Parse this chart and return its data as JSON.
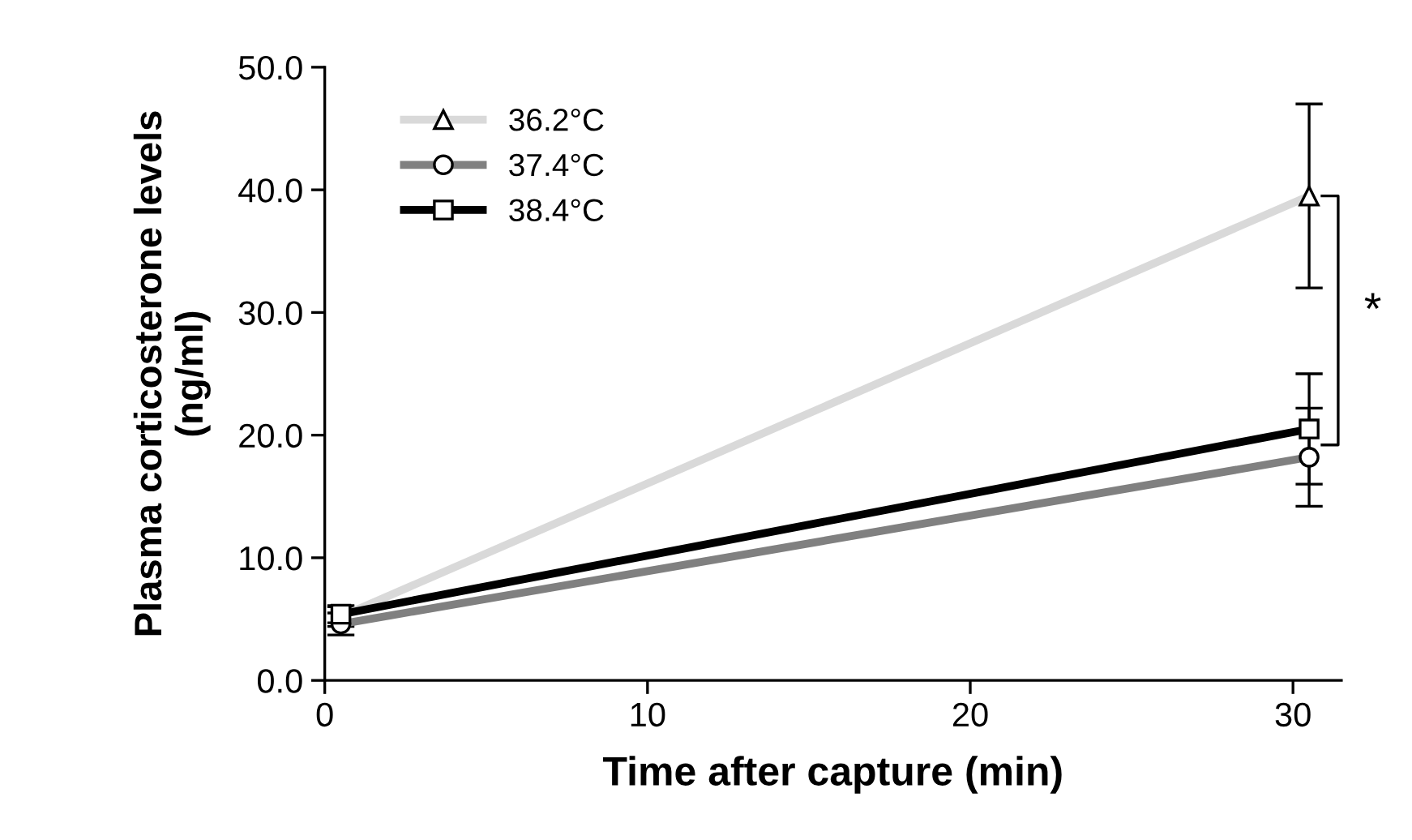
{
  "chart_data": {
    "type": "line",
    "xlabel": "Time after capture (min)",
    "ylabel": "Plasma corticosterone levels\n(ng/ml)",
    "x": [
      0.5,
      30.5
    ],
    "xlim": [
      0,
      31.5
    ],
    "xticks": [
      0,
      10,
      20,
      30
    ],
    "ylim": [
      0,
      50
    ],
    "yticks": [
      {
        "value": 0,
        "label": "0.0"
      },
      {
        "value": 10,
        "label": "10.0"
      },
      {
        "value": 20,
        "label": "20.0"
      },
      {
        "value": 30,
        "label": "30.0"
      },
      {
        "value": 40,
        "label": "40.0"
      },
      {
        "value": 50,
        "label": "50.0"
      }
    ],
    "series": [
      {
        "name": "36.2°C",
        "color": "#d9d9d9",
        "marker": "triangle",
        "values": [
          5.2,
          39.5
        ],
        "errors": [
          0.8,
          7.5
        ]
      },
      {
        "name": "37.4°C",
        "color": "#808080",
        "marker": "circle",
        "values": [
          4.6,
          18.2
        ],
        "errors": [
          0.9,
          4.0
        ]
      },
      {
        "name": "38.4°C",
        "color": "#000000",
        "marker": "square",
        "values": [
          5.4,
          20.5
        ],
        "errors": [
          0.7,
          4.5
        ]
      }
    ],
    "annotations": [
      "*"
    ],
    "legend": "top left",
    "grid": false
  }
}
